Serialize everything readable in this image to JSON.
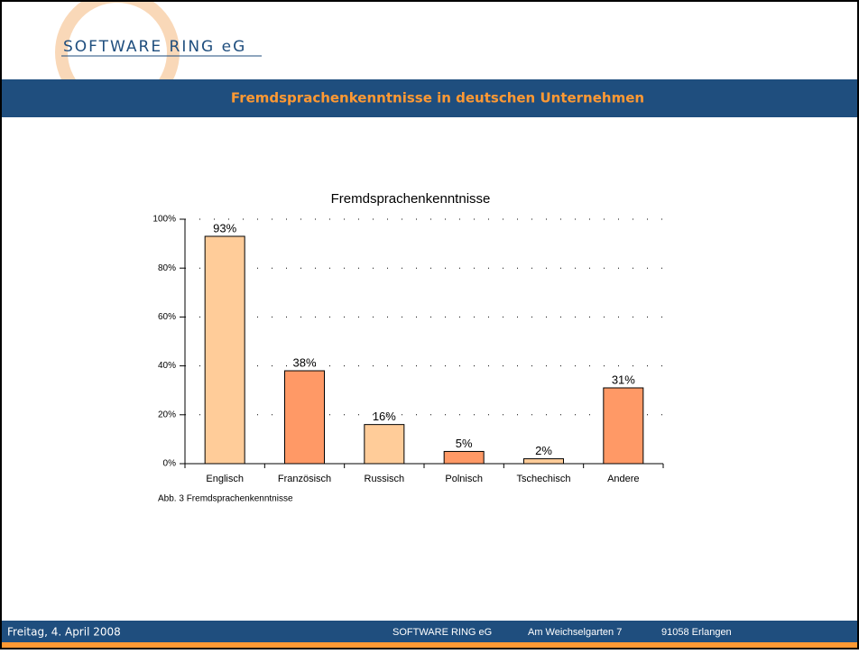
{
  "header": {
    "logo": "SOFTWARE RING eG",
    "title": "Fremdsprachenkenntnisse in deutschen Unternehmen"
  },
  "chart_data": {
    "type": "bar",
    "title": "Fremdsprachenkenntnisse",
    "categories": [
      "Englisch",
      "Französisch",
      "Russisch",
      "Polnisch",
      "Tschechisch",
      "Andere"
    ],
    "values": [
      93,
      38,
      16,
      5,
      2,
      31
    ],
    "value_labels": [
      "93%",
      "38%",
      "16%",
      "5%",
      "2%",
      "31%"
    ],
    "colors": [
      "#ffcc99",
      "#ff9966",
      "#ffcc99",
      "#ff9966",
      "#ffcc99",
      "#ff9966"
    ],
    "ylim": [
      0,
      100
    ],
    "yticks": [
      {
        "value": 0,
        "label": "0%"
      },
      {
        "value": 20,
        "label": "20%"
      },
      {
        "value": 40,
        "label": "40%"
      },
      {
        "value": 60,
        "label": "60%"
      },
      {
        "value": 80,
        "label": "80%"
      },
      {
        "value": 100,
        "label": "100%"
      }
    ],
    "grid": true,
    "caption": "Abb. 3 Fremdsprachenkenntnisse"
  },
  "footer": {
    "date": "Freitag, 4. April 2008",
    "company": "SOFTWARE RING eG",
    "street": "Am Weichselgarten 7",
    "city": "91058 Erlangen"
  }
}
